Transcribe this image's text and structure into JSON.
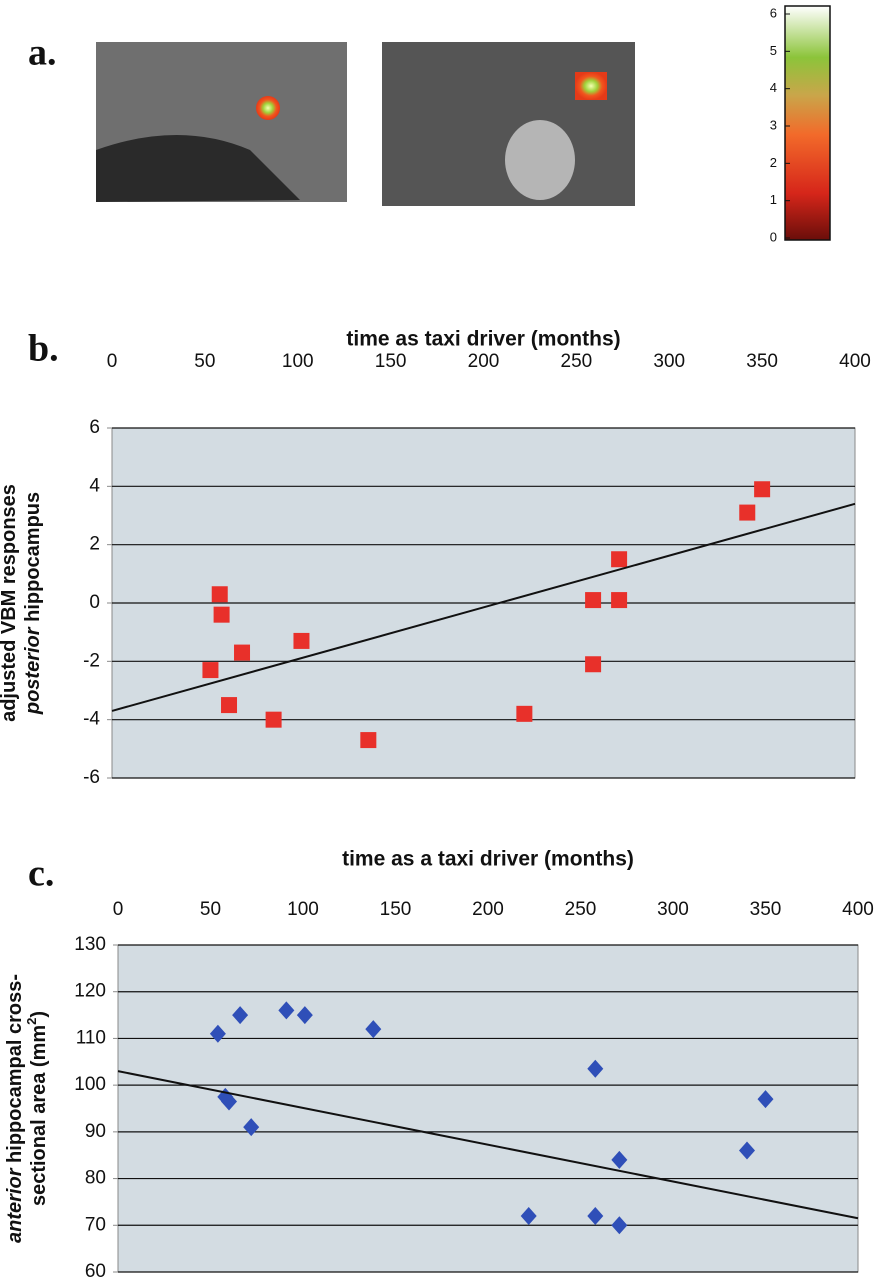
{
  "chart_data": [
    {
      "type": "colorbar",
      "label": "a.",
      "ylim": [
        0,
        6
      ],
      "yticks": [
        0,
        1,
        2,
        3,
        4,
        5,
        6
      ]
    },
    {
      "type": "scatter",
      "label": "b.",
      "title": "time as taxi driver (months)",
      "ylabel": {
        "line1": "adjusted VBM responses",
        "line2_italic": "posterior",
        "line2": "hippocampus"
      },
      "xlim": [
        0,
        400
      ],
      "xticks": [
        0,
        50,
        100,
        150,
        200,
        250,
        300,
        350,
        400
      ],
      "ylim": [
        -6,
        6
      ],
      "yticks": [
        -6,
        -4,
        -2,
        0,
        2,
        4,
        6
      ],
      "grid": true,
      "series": [
        {
          "color": "#e8302a",
          "marker": "square",
          "x": [
            53,
            58,
            59,
            63,
            70,
            87,
            102,
            138,
            222,
            259,
            259,
            273,
            273,
            342,
            350
          ],
          "values": [
            -2.3,
            0.3,
            -0.4,
            -3.5,
            -1.7,
            -4,
            -1.3,
            -4.7,
            -3.8,
            0.1,
            -2.1,
            1.5,
            0.1,
            3.1,
            3.9
          ]
        },
        {
          "color": "#111111",
          "marker": "line",
          "x": [
            0,
            400
          ],
          "values": [
            -3.7,
            3.4
          ]
        }
      ]
    },
    {
      "type": "scatter",
      "label": "c.",
      "title": "time as a taxi driver (months)",
      "ylabel": {
        "line1_italic": "anterior",
        "line1": "hippocampal cross-",
        "line2": "sectional area (mm",
        "line2_sup": "2",
        "line2_end": ")"
      },
      "xlim": [
        0,
        400
      ],
      "xticks": [
        0,
        50,
        100,
        150,
        200,
        250,
        300,
        350,
        400
      ],
      "ylim": [
        60,
        130
      ],
      "yticks": [
        60,
        70,
        80,
        90,
        100,
        110,
        120,
        130
      ],
      "grid": true,
      "series": [
        {
          "color": "#2f4fb8",
          "marker": "diamond",
          "x": [
            54,
            58,
            60,
            66,
            72,
            91,
            101,
            138,
            222,
            258,
            258,
            271,
            271,
            340,
            350
          ],
          "values": [
            111,
            97.5,
            96.5,
            115,
            91,
            116,
            115,
            112,
            72,
            103.5,
            72,
            84,
            70,
            86,
            97
          ]
        },
        {
          "color": "#111111",
          "marker": "line",
          "x": [
            0,
            400
          ],
          "values": [
            103,
            71.5
          ]
        }
      ]
    }
  ]
}
